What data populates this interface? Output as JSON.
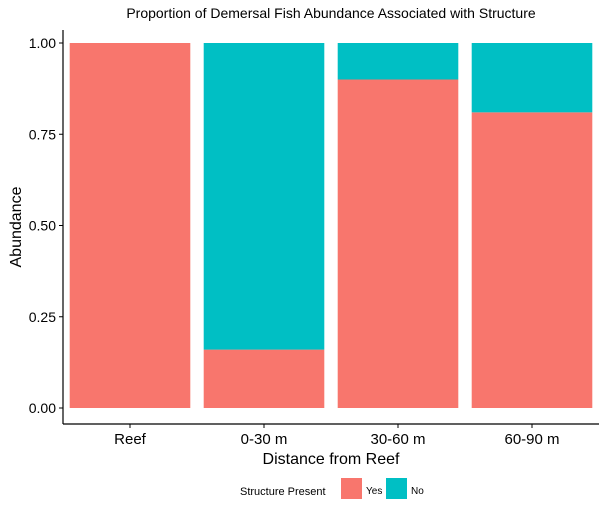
{
  "chart_data": {
    "type": "bar",
    "stacked": true,
    "title": "Proportion of Demersal Fish Abundance Associated with Structure",
    "xlabel": "Distance from Reef",
    "ylabel": "Abundance",
    "categories": [
      "Reef",
      "0-30 m",
      "30-60 m",
      "60-90 m"
    ],
    "series": [
      {
        "name": "Yes",
        "color": "#F8766D",
        "values": [
          1.0,
          0.16,
          0.9,
          0.81
        ]
      },
      {
        "name": "No",
        "color": "#00BFC4",
        "values": [
          0.0,
          0.84,
          0.1,
          0.19
        ]
      }
    ],
    "ylim": [
      0,
      1
    ],
    "yticks": [
      "0.00",
      "0.25",
      "0.50",
      "0.75",
      "1.00"
    ],
    "grid": false,
    "legend": {
      "title": "Structure Present",
      "placement": "bottom",
      "items": [
        "Yes",
        "No"
      ]
    }
  }
}
